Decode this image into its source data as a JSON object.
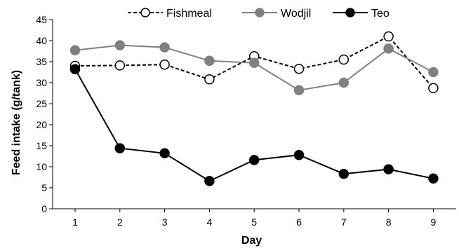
{
  "chart_data": {
    "type": "line",
    "xlabel": "Day",
    "ylabel": "Feed intake (g/tank)",
    "x": [
      1,
      2,
      3,
      4,
      5,
      6,
      7,
      8,
      9
    ],
    "ylim": [
      0,
      45
    ],
    "yticks": [
      0,
      5,
      10,
      15,
      20,
      25,
      30,
      35,
      40,
      45
    ],
    "grid": false,
    "legend_position": "top",
    "series": [
      {
        "name": "Fishmeal",
        "values": [
          34.0,
          34.1,
          34.3,
          30.8,
          36.3,
          33.3,
          35.5,
          41.0,
          28.7
        ],
        "line_color": "#000000",
        "line_style": "dashed",
        "marker_fill": "#ffffff",
        "marker_stroke": "#000000"
      },
      {
        "name": "Wodjil",
        "values": [
          37.7,
          38.9,
          38.4,
          35.2,
          34.7,
          28.2,
          30.0,
          38.1,
          32.5
        ],
        "line_color": "#808080",
        "line_style": "solid",
        "marker_fill": "#808080",
        "marker_stroke": "#808080"
      },
      {
        "name": "Teo",
        "values": [
          33.2,
          14.4,
          13.2,
          6.6,
          11.6,
          12.8,
          8.3,
          9.4,
          7.2
        ],
        "line_color": "#000000",
        "line_style": "solid",
        "marker_fill": "#000000",
        "marker_stroke": "#000000"
      }
    ]
  }
}
